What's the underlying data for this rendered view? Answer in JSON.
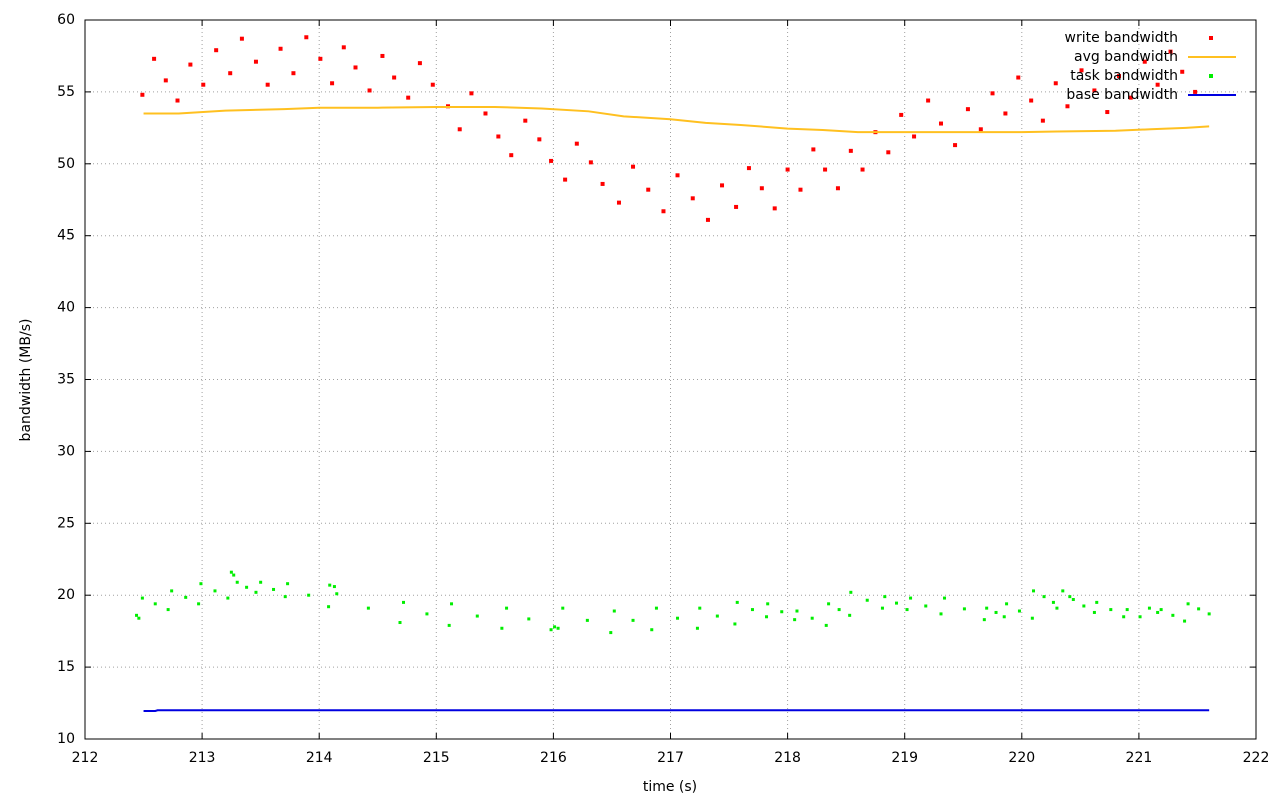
{
  "chart_data": {
    "type": "scatter",
    "x_label": "time (s)",
    "y_label": "bandwidth (MB/s)",
    "xlim": [
      212,
      222
    ],
    "xticks": [
      212,
      213,
      214,
      215,
      216,
      217,
      218,
      219,
      220,
      221,
      222
    ],
    "ylim": [
      10,
      60
    ],
    "yticks": [
      10,
      15,
      20,
      25,
      30,
      35,
      40,
      45,
      50,
      55,
      60
    ],
    "grid": true,
    "legend": "top-right",
    "series": [
      {
        "name": "write bandwidth",
        "style": "points",
        "color": "#ff0000",
        "x": [
          212.49,
          212.59,
          212.69,
          212.79,
          212.9,
          213.01,
          213.12,
          213.24,
          213.34,
          213.46,
          213.56,
          213.67,
          213.78,
          213.89,
          214.01,
          214.11,
          214.21,
          214.31,
          214.43,
          214.54,
          214.64,
          214.76,
          214.86,
          214.97,
          215.1,
          215.2,
          215.3,
          215.42,
          215.53,
          215.64,
          215.76,
          215.88,
          215.98,
          216.1,
          216.2,
          216.32,
          216.42,
          216.56,
          216.68,
          216.81,
          216.94,
          217.06,
          217.19,
          217.32,
          217.44,
          217.56,
          217.67,
          217.78,
          217.89,
          218.0,
          218.11,
          218.22,
          218.32,
          218.43,
          218.54,
          218.64,
          218.75,
          218.86,
          218.97,
          219.08,
          219.2,
          219.31,
          219.43,
          219.54,
          219.65,
          219.75,
          219.86,
          219.97,
          220.08,
          220.18,
          220.29,
          220.39,
          220.51,
          220.62,
          220.73,
          220.83,
          220.93,
          221.05,
          221.16,
          221.27,
          221.37,
          221.48
        ],
        "values": [
          54.8,
          57.3,
          55.8,
          54.4,
          56.9,
          55.5,
          57.9,
          56.3,
          58.7,
          57.1,
          55.5,
          58.0,
          56.3,
          58.8,
          57.3,
          55.6,
          58.1,
          56.7,
          55.1,
          57.5,
          56.0,
          54.6,
          57.0,
          55.5,
          54.0,
          52.4,
          54.9,
          53.5,
          51.9,
          50.6,
          53.0,
          51.7,
          50.2,
          48.9,
          51.4,
          50.1,
          48.6,
          47.3,
          49.8,
          48.2,
          46.7,
          49.2,
          47.6,
          46.1,
          48.5,
          47.0,
          49.7,
          48.3,
          46.9,
          49.6,
          48.2,
          51.0,
          49.6,
          48.3,
          50.9,
          49.6,
          52.2,
          50.8,
          53.4,
          51.9,
          54.4,
          52.8,
          51.3,
          53.8,
          52.4,
          54.9,
          53.5,
          56.0,
          54.4,
          53.0,
          55.6,
          54.0,
          56.5,
          55.1,
          53.6,
          56.1,
          54.6,
          57.1,
          55.5,
          57.8,
          56.4,
          55.0
        ]
      },
      {
        "name": "avg bandwidth",
        "style": "lines",
        "color": "#ffc020",
        "x": [
          212.5,
          212.8,
          213.2,
          213.7,
          214.0,
          214.5,
          215.0,
          215.5,
          215.9,
          216.3,
          216.6,
          217.0,
          217.3,
          217.6,
          218.0,
          218.3,
          218.6,
          219.0,
          219.5,
          220.0,
          220.3,
          220.8,
          221.1,
          221.4,
          221.6
        ],
        "values": [
          53.5,
          53.5,
          53.7,
          53.8,
          53.9,
          53.9,
          53.95,
          53.95,
          53.85,
          53.65,
          53.3,
          53.1,
          52.85,
          52.7,
          52.45,
          52.35,
          52.2,
          52.2,
          52.2,
          52.2,
          52.25,
          52.3,
          52.4,
          52.5,
          52.6
        ]
      },
      {
        "name": "task bandwidth",
        "style": "points",
        "color": "#00ee00",
        "x": [
          212.44,
          212.46,
          212.49,
          212.6,
          212.71,
          212.74,
          212.86,
          212.97,
          212.99,
          213.11,
          213.22,
          213.25,
          213.27,
          213.3,
          213.38,
          213.46,
          213.5,
          213.61,
          213.71,
          213.73,
          213.91,
          214.08,
          214.09,
          214.13,
          214.15,
          214.42,
          214.69,
          214.72,
          214.92,
          215.11,
          215.13,
          215.35,
          215.56,
          215.6,
          215.79,
          215.98,
          216.01,
          216.04,
          216.08,
          216.29,
          216.49,
          216.52,
          216.68,
          216.84,
          216.88,
          217.06,
          217.23,
          217.25,
          217.4,
          217.55,
          217.57,
          217.7,
          217.82,
          217.83,
          217.95,
          218.06,
          218.08,
          218.21,
          218.33,
          218.35,
          218.44,
          218.53,
          218.54,
          218.68,
          218.81,
          218.83,
          218.93,
          219.02,
          219.05,
          219.18,
          219.31,
          219.34,
          219.51,
          219.68,
          219.7,
          219.78,
          219.85,
          219.87,
          219.98,
          220.09,
          220.1,
          220.19,
          220.27,
          220.3,
          220.35,
          220.41,
          220.44,
          220.53,
          220.62,
          220.64,
          220.76,
          220.87,
          220.9,
          221.01,
          221.09,
          221.16,
          221.19,
          221.29,
          221.39,
          221.42,
          221.51,
          221.6
        ],
        "values": [
          18.6,
          18.4,
          19.8,
          19.4,
          19.0,
          20.3,
          19.85,
          19.4,
          20.8,
          20.3,
          19.8,
          21.6,
          21.4,
          20.9,
          20.55,
          20.2,
          20.9,
          20.4,
          19.9,
          20.8,
          20.0,
          19.2,
          20.7,
          20.6,
          20.1,
          19.1,
          18.1,
          19.5,
          18.7,
          17.9,
          19.4,
          18.55,
          17.7,
          19.1,
          18.35,
          17.6,
          17.8,
          17.7,
          19.1,
          18.25,
          17.4,
          18.9,
          18.25,
          17.6,
          19.1,
          18.4,
          17.7,
          19.1,
          18.55,
          18.0,
          19.5,
          19.0,
          18.5,
          19.4,
          18.85,
          18.3,
          18.9,
          18.4,
          17.9,
          19.4,
          19.0,
          18.6,
          20.2,
          19.65,
          19.1,
          19.9,
          19.45,
          19.0,
          19.8,
          19.25,
          18.7,
          19.8,
          19.05,
          18.3,
          19.1,
          18.8,
          18.5,
          19.4,
          18.9,
          18.4,
          20.3,
          19.9,
          19.5,
          19.1,
          20.3,
          19.9,
          19.7,
          19.25,
          18.8,
          19.5,
          19.0,
          18.5,
          19.0,
          18.5,
          19.1,
          18.8,
          19.0,
          18.6,
          18.2,
          19.4,
          19.05,
          18.7
        ]
      },
      {
        "name": "base bandwidth",
        "style": "lines",
        "color": "#0000e0",
        "x": [
          212.5,
          212.6,
          212.62,
          221.6
        ],
        "values": [
          11.95,
          11.95,
          12,
          12
        ]
      }
    ]
  }
}
